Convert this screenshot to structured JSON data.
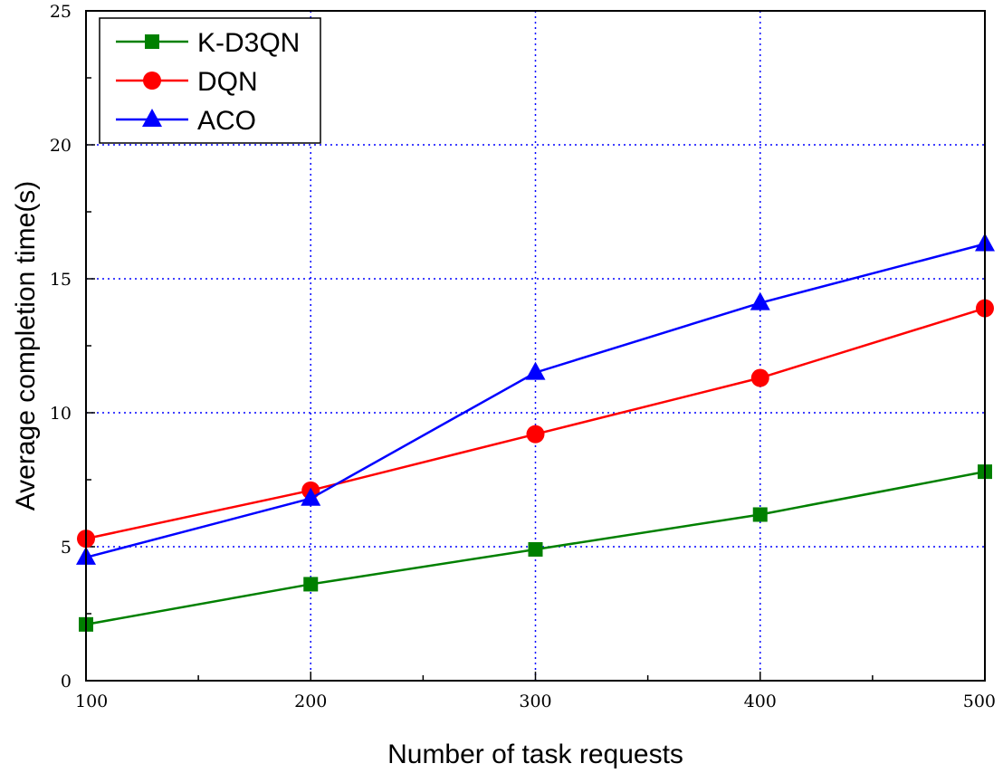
{
  "chart_data": {
    "type": "line",
    "title": "",
    "xlabel": "Number of task requests",
    "ylabel": "Average completion time(s)",
    "x": [
      100,
      200,
      300,
      400,
      500
    ],
    "xlim": [
      100,
      500
    ],
    "ylim": [
      0,
      25
    ],
    "xticks": [
      100,
      200,
      300,
      400,
      500
    ],
    "yticks": [
      0,
      5,
      10,
      15,
      20,
      25
    ],
    "grid": "dotted",
    "legend_position": "top-left",
    "series": [
      {
        "name": "K-D3QN",
        "color": "#008000",
        "marker": "square",
        "values": [
          2.1,
          3.6,
          4.9,
          6.2,
          7.8
        ]
      },
      {
        "name": "DQN",
        "color": "#ff0000",
        "marker": "circle",
        "values": [
          5.3,
          7.1,
          9.2,
          11.3,
          13.9
        ]
      },
      {
        "name": "ACO",
        "color": "#0000ff",
        "marker": "triangle",
        "values": [
          4.6,
          6.8,
          11.5,
          14.1,
          16.3
        ]
      }
    ]
  }
}
